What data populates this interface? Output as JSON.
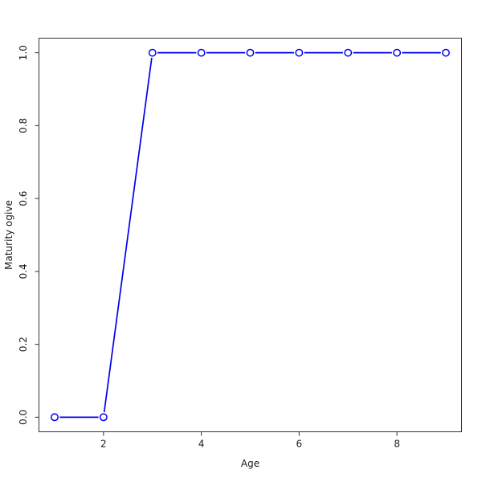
{
  "figure": {
    "background": "#ffffff"
  },
  "chart_data": {
    "type": "line",
    "title": "",
    "xlabel": "Age",
    "ylabel": "Maturity ogive",
    "x": [
      1,
      2,
      3,
      4,
      5,
      6,
      7,
      8,
      9
    ],
    "series": [
      {
        "name": "maturity-ogive",
        "values": [
          0,
          0,
          1,
          1,
          1,
          1,
          1,
          1,
          1
        ]
      }
    ],
    "x_ticks": [
      2,
      4,
      6,
      8
    ],
    "y_ticks": [
      "0.0",
      "0.2",
      "0.4",
      "0.6",
      "0.8",
      "1.0"
    ],
    "y_tick_values": [
      0.0,
      0.2,
      0.4,
      0.6,
      0.8,
      1.0
    ],
    "xlim": [
      0.68,
      9.32
    ],
    "ylim": [
      -0.04,
      1.04
    ],
    "grid": false,
    "legend": "none",
    "marker": "open-circle",
    "colors": {
      "line": "#0000EE",
      "marker_stroke": "#0000EE",
      "marker_fill": "#FFFFFF",
      "axis_box": "#333333",
      "tick_text": "#1a1a1a"
    }
  }
}
